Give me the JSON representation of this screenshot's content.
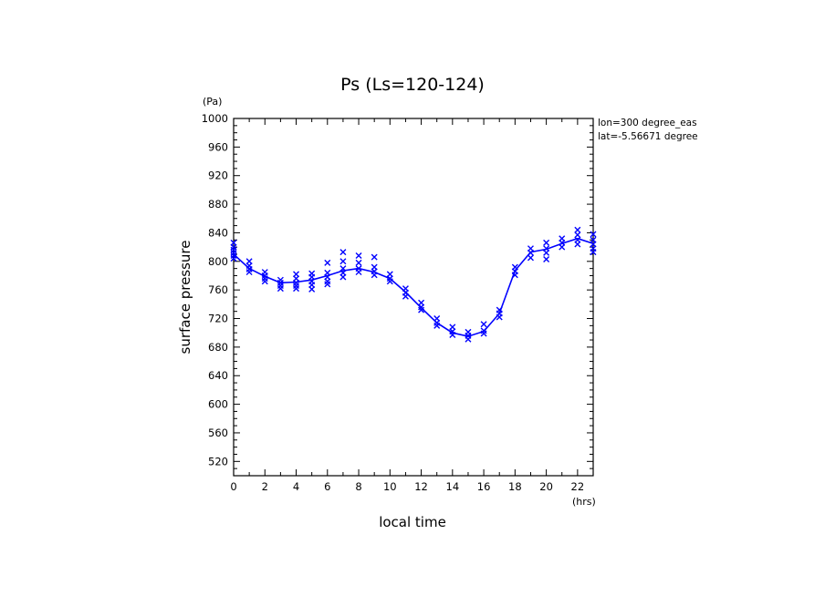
{
  "chart_data": {
    "type": "line",
    "title": "Ps (Ls=120-124)",
    "xlabel": "local time",
    "ylabel": "surface pressure",
    "x_unit": "(hrs)",
    "y_unit": "(Pa)",
    "xlim": [
      0,
      23
    ],
    "ylim": [
      500,
      1000
    ],
    "x_ticks": [
      0,
      2,
      4,
      6,
      8,
      10,
      12,
      14,
      16,
      18,
      20,
      22
    ],
    "y_ticks": [
      520,
      560,
      600,
      640,
      680,
      720,
      760,
      800,
      840,
      880,
      920,
      960,
      1000
    ],
    "annotations": [
      "lon=300 degree_eas",
      "lat=-5.56671 degree"
    ],
    "color": "#0000ff",
    "series": [
      {
        "kind": "mean-line",
        "x": [
          0,
          1,
          2,
          3,
          4,
          5,
          6,
          7,
          8,
          9,
          10,
          11,
          12,
          13,
          14,
          15,
          16,
          17,
          18,
          19,
          20,
          21,
          22,
          23
        ],
        "y": [
          810,
          790,
          779,
          770,
          771,
          774,
          780,
          787,
          790,
          785,
          776,
          757,
          735,
          714,
          700,
          695,
          702,
          727,
          787,
          813,
          817,
          825,
          832,
          825
        ]
      },
      {
        "kind": "scatter-x",
        "points": [
          [
            0,
            826
          ],
          [
            0,
            820
          ],
          [
            0,
            816
          ],
          [
            0,
            812
          ],
          [
            0,
            808
          ],
          [
            0,
            804
          ],
          [
            1,
            800
          ],
          [
            1,
            794
          ],
          [
            1,
            789
          ],
          [
            1,
            785
          ],
          [
            2,
            785
          ],
          [
            2,
            780
          ],
          [
            2,
            776
          ],
          [
            2,
            772
          ],
          [
            3,
            774
          ],
          [
            3,
            770
          ],
          [
            3,
            766
          ],
          [
            3,
            762
          ],
          [
            4,
            782
          ],
          [
            4,
            776
          ],
          [
            4,
            770
          ],
          [
            4,
            766
          ],
          [
            4,
            762
          ],
          [
            5,
            783
          ],
          [
            5,
            778
          ],
          [
            5,
            772
          ],
          [
            5,
            767
          ],
          [
            5,
            761
          ],
          [
            6,
            798
          ],
          [
            6,
            784
          ],
          [
            6,
            778
          ],
          [
            6,
            772
          ],
          [
            6,
            768
          ],
          [
            7,
            813
          ],
          [
            7,
            800
          ],
          [
            7,
            790
          ],
          [
            7,
            784
          ],
          [
            7,
            778
          ],
          [
            8,
            808
          ],
          [
            8,
            798
          ],
          [
            8,
            790
          ],
          [
            8,
            785
          ],
          [
            9,
            806
          ],
          [
            9,
            792
          ],
          [
            9,
            786
          ],
          [
            9,
            781
          ],
          [
            10,
            782
          ],
          [
            10,
            776
          ],
          [
            10,
            772
          ],
          [
            11,
            762
          ],
          [
            11,
            756
          ],
          [
            11,
            751
          ],
          [
            12,
            742
          ],
          [
            12,
            736
          ],
          [
            12,
            732
          ],
          [
            13,
            720
          ],
          [
            13,
            714
          ],
          [
            13,
            710
          ],
          [
            14,
            708
          ],
          [
            14,
            702
          ],
          [
            14,
            697
          ],
          [
            15,
            701
          ],
          [
            15,
            696
          ],
          [
            15,
            691
          ],
          [
            16,
            712
          ],
          [
            16,
            703
          ],
          [
            16,
            699
          ],
          [
            17,
            732
          ],
          [
            17,
            727
          ],
          [
            17,
            722
          ],
          [
            18,
            792
          ],
          [
            18,
            786
          ],
          [
            18,
            781
          ],
          [
            19,
            818
          ],
          [
            19,
            812
          ],
          [
            19,
            805
          ],
          [
            20,
            826
          ],
          [
            20,
            818
          ],
          [
            20,
            812
          ],
          [
            20,
            803
          ],
          [
            21,
            832
          ],
          [
            21,
            826
          ],
          [
            21,
            820
          ],
          [
            22,
            844
          ],
          [
            22,
            837
          ],
          [
            22,
            830
          ],
          [
            22,
            824
          ],
          [
            23,
            838
          ],
          [
            23,
            830
          ],
          [
            23,
            824
          ],
          [
            23,
            818
          ],
          [
            23,
            813
          ]
        ]
      }
    ]
  }
}
